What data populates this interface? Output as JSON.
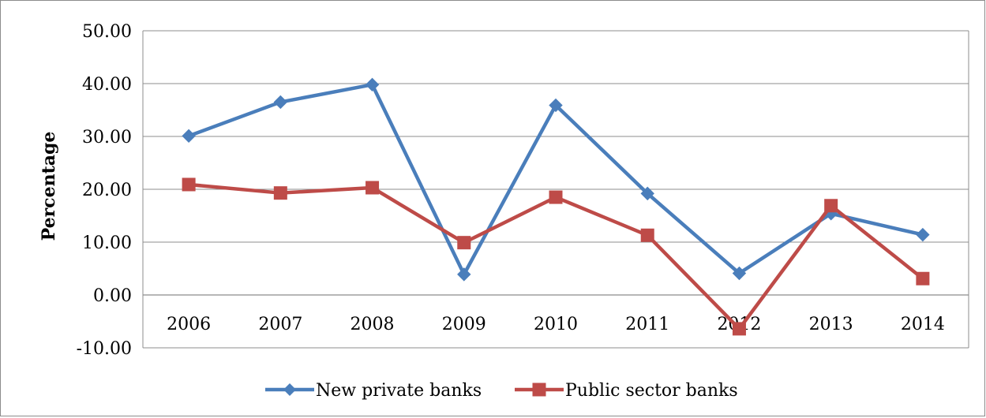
{
  "chart_data": {
    "type": "line",
    "title": "",
    "xlabel": "",
    "ylabel": "Percentage",
    "categories": [
      "2006",
      "2007",
      "2008",
      "2009",
      "2010",
      "2011",
      "2012",
      "2013",
      "2014"
    ],
    "ylim": [
      -10,
      50
    ],
    "yticks": [
      "50.00",
      "40.00",
      "30.00",
      "20.00",
      "10.00",
      "0.00",
      "-10.00"
    ],
    "grid": true,
    "legend_position": "bottom",
    "series": [
      {
        "name": "New private banks",
        "color": "#4a7ebb",
        "marker": "diamond",
        "values": [
          30.1,
          36.5,
          39.8,
          3.9,
          35.9,
          19.2,
          4.1,
          15.4,
          11.4
        ]
      },
      {
        "name": "Public sector banks",
        "color": "#be4b48",
        "marker": "square",
        "values": [
          20.9,
          19.3,
          20.3,
          9.9,
          18.5,
          11.3,
          -6.4,
          16.9,
          3.1
        ]
      }
    ]
  }
}
